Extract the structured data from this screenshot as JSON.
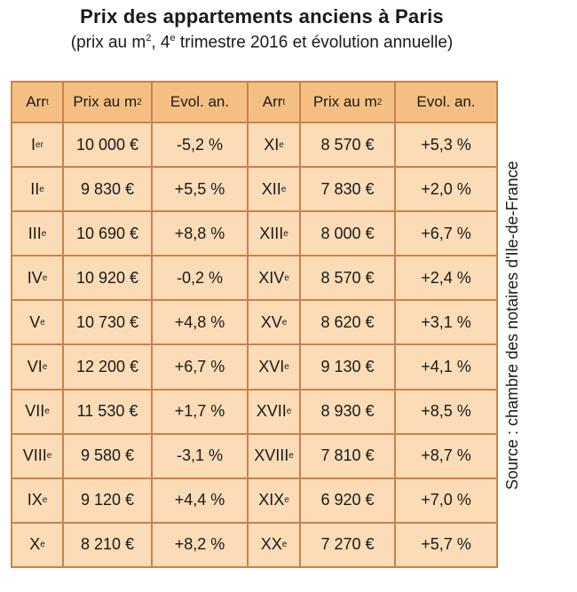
{
  "title": "Prix des appartements anciens à Paris",
  "subtitle": {
    "prefix": "(prix au m",
    "sup1": "2",
    "mid": ", 4",
    "sup2": "e",
    "suffix": " trimestre 2016 et évolution annuelle)"
  },
  "headers": {
    "arr": "Arr",
    "arr_sup": "t",
    "price": "Prix au m",
    "price_sup": "2",
    "evol": "Evol. an."
  },
  "rows_left": [
    {
      "arr": "Ier",
      "price": "10 000 €",
      "evol": "-5,2 %"
    },
    {
      "arr": "IIe",
      "price": "9 830 €",
      "evol": "+5,5 %"
    },
    {
      "arr": "IIIe",
      "price": "10 690 €",
      "evol": "+8,8 %"
    },
    {
      "arr": "IVe",
      "price": "10 920 €",
      "evol": "-0,2 %"
    },
    {
      "arr": "Ve",
      "price": "10 730 €",
      "evol": "+4,8 %"
    },
    {
      "arr": "VIe",
      "price": "12 200 €",
      "evol": "+6,7 %"
    },
    {
      "arr": "VIIe",
      "price": "11 530 €",
      "evol": "+1,7 %"
    },
    {
      "arr": "VIIIe",
      "price": "9 580 €",
      "evol": "-3,1 %"
    },
    {
      "arr": "IXe",
      "price": "9 120 €",
      "evol": "+4,4 %"
    },
    {
      "arr": "Xe",
      "price": "8 210 €",
      "evol": "+8,2 %"
    }
  ],
  "rows_right": [
    {
      "arr": "XIe",
      "price": "8 570 €",
      "evol": "+5,3 %"
    },
    {
      "arr": "XIIe",
      "price": "7 830 €",
      "evol": "+2,0 %"
    },
    {
      "arr": "XIIIe",
      "price": "8 000 €",
      "evol": "+6,7 %"
    },
    {
      "arr": "XIVe",
      "price": "8 570 €",
      "evol": "+2,4 %"
    },
    {
      "arr": "XVe",
      "price": "8 620 €",
      "evol": "+3,1 %"
    },
    {
      "arr": "XVIe",
      "price": "9 130 €",
      "evol": "+4,1 %"
    },
    {
      "arr": "XVIIe",
      "price": "8 930 €",
      "evol": "+8,5 %"
    },
    {
      "arr": "XVIIIe",
      "price": "7 810 €",
      "evol": "+8,7 %"
    },
    {
      "arr": "XIXe",
      "price": "6 920 €",
      "evol": "+7,0 %"
    },
    {
      "arr": "XXe",
      "price": "7 270 €",
      "evol": "+5,7 %"
    }
  ],
  "source": "Source : chambre des notaires d'Ile-de-France",
  "colors": {
    "header_bg": "#f5bf83",
    "cell_bg": "#fbdcb6",
    "border": "#c8824a"
  }
}
